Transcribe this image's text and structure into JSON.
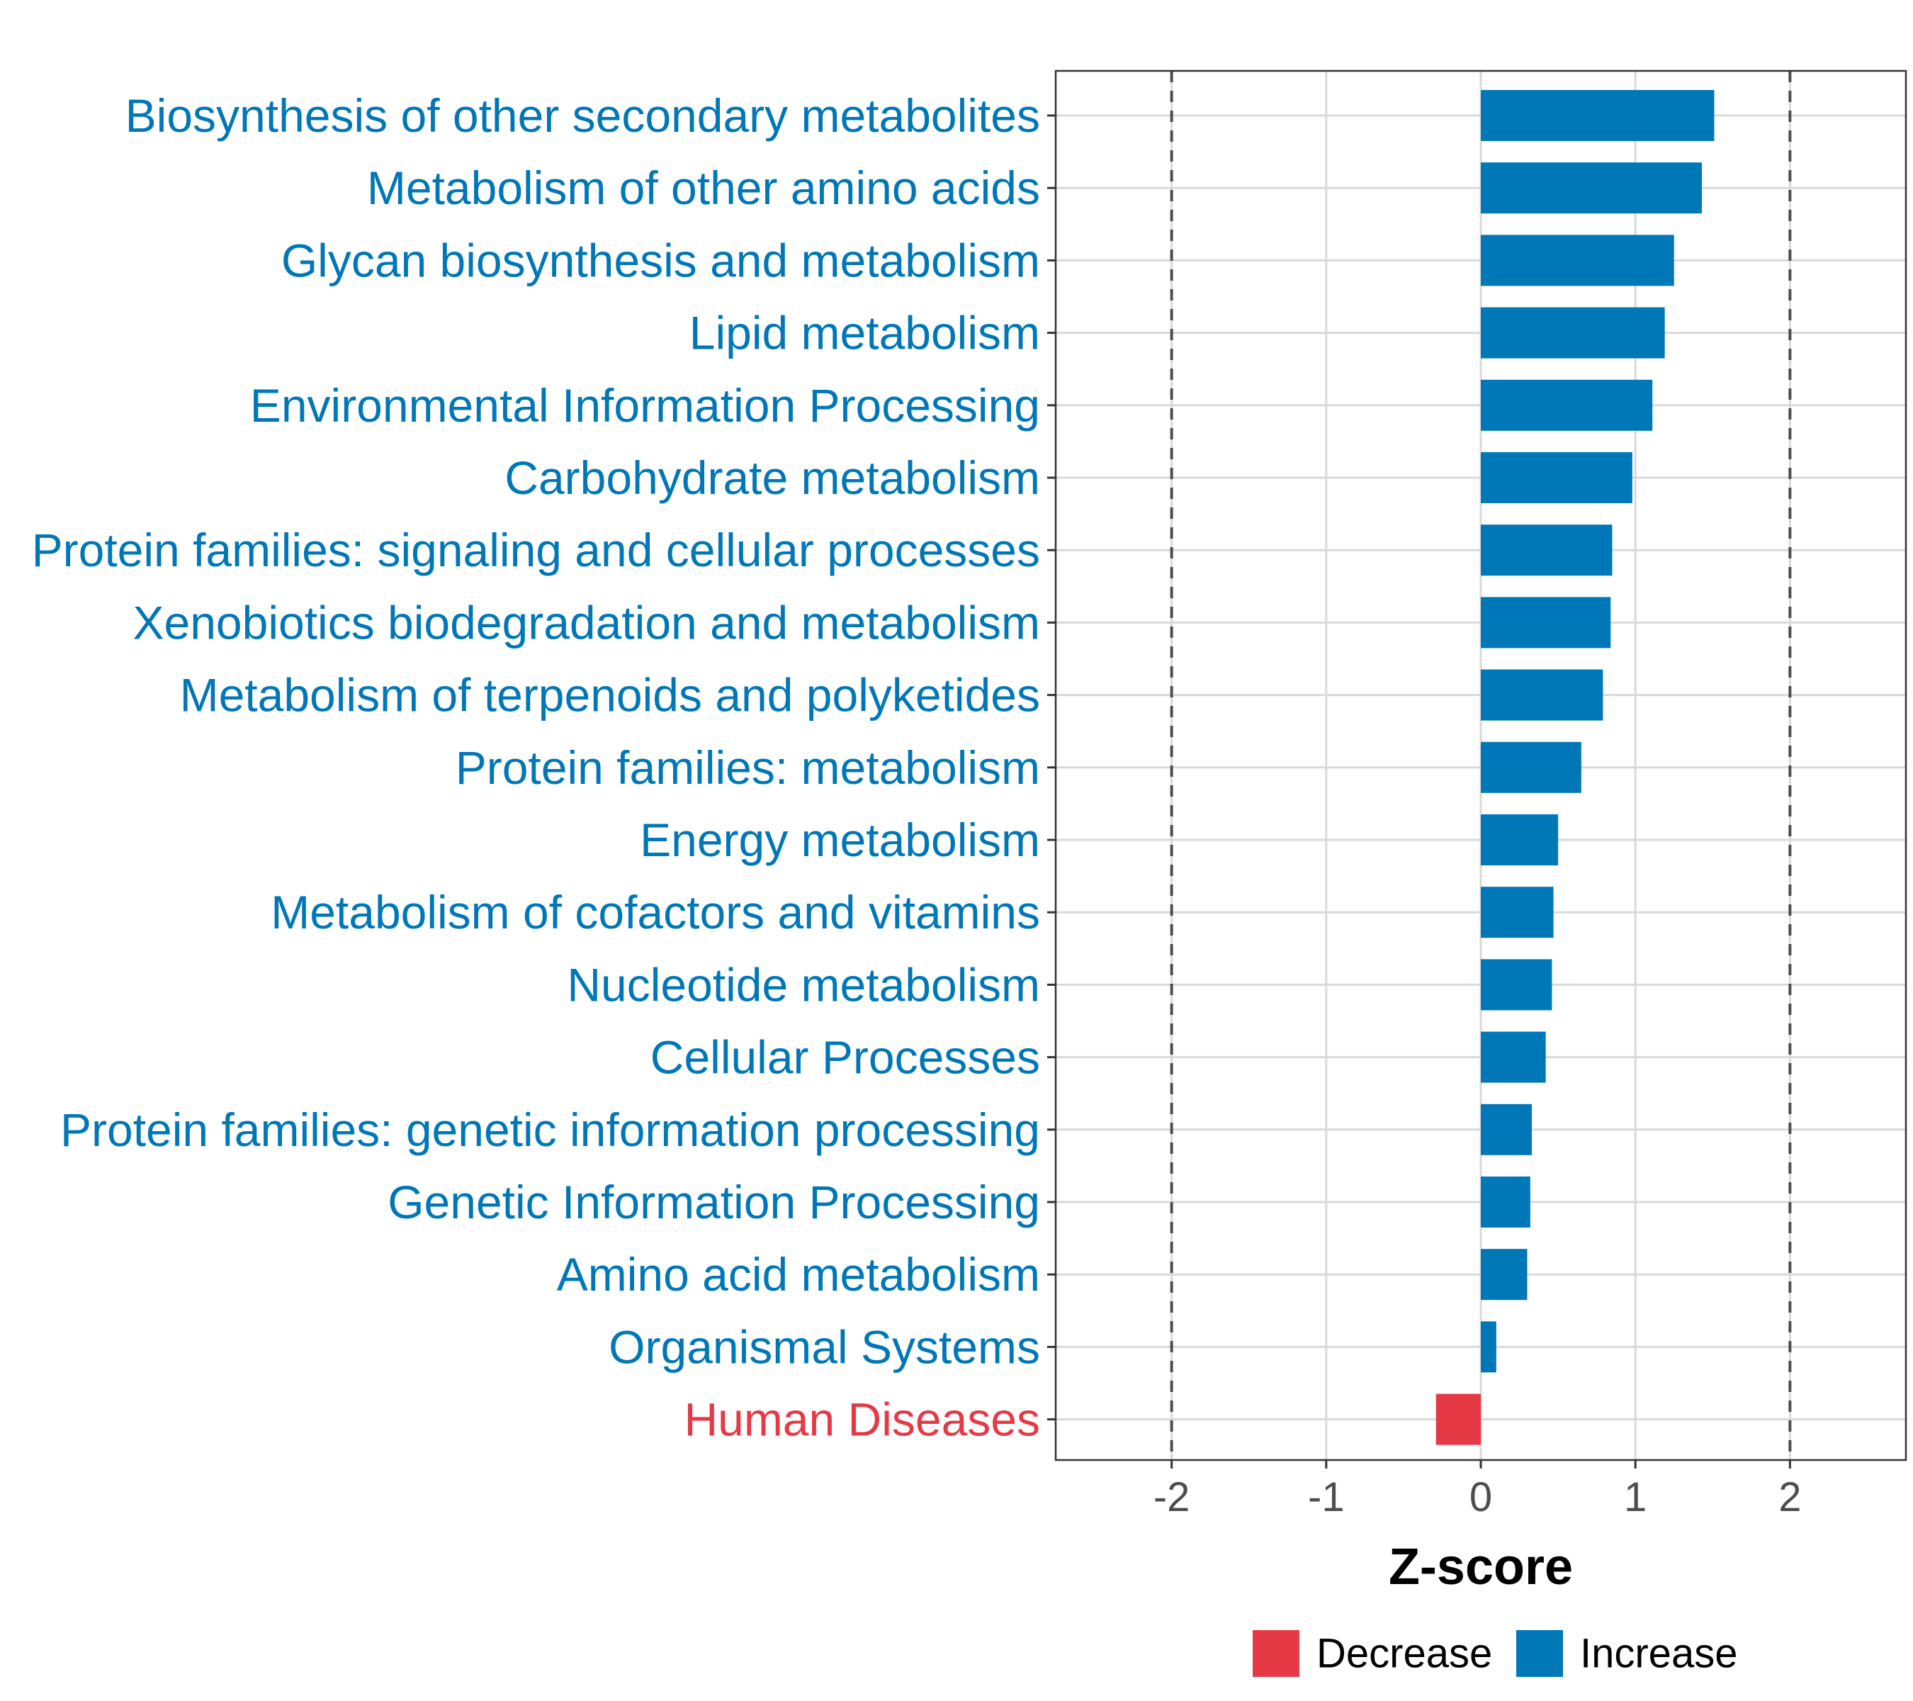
{
  "chart_data": {
    "type": "bar",
    "orientation": "horizontal",
    "title": "",
    "xlabel": "Z-score",
    "ylabel": "",
    "xlim": [
      -2.75,
      2.75
    ],
    "xticks": [
      -2,
      -1,
      0,
      1,
      2
    ],
    "xtick_labels": [
      "-2",
      "-1",
      "0",
      "1",
      "2"
    ],
    "reference_lines": [
      -2,
      2
    ],
    "grid": true,
    "legend_position": "bottom",
    "colors": {
      "Decrease": "#e63946",
      "Increase": "#0077b6"
    },
    "categories": [
      "Biosynthesis of other secondary metabolites",
      "Metabolism of other amino acids",
      "Glycan biosynthesis and metabolism",
      "Lipid metabolism",
      "Environmental Information Processing",
      "Carbohydrate metabolism",
      "Protein families: signaling and cellular processes",
      "Xenobiotics biodegradation and metabolism",
      "Metabolism of terpenoids and polyketides",
      "Protein families: metabolism",
      "Energy metabolism",
      "Metabolism of cofactors and vitamins",
      "Nucleotide metabolism",
      "Cellular Processes",
      "Protein families: genetic information processing",
      "Genetic Information Processing",
      "Amino acid metabolism",
      "Organismal Systems",
      "Human Diseases"
    ],
    "values": [
      1.51,
      1.43,
      1.25,
      1.19,
      1.11,
      0.98,
      0.85,
      0.84,
      0.79,
      0.65,
      0.5,
      0.47,
      0.46,
      0.42,
      0.33,
      0.32,
      0.3,
      0.1,
      -0.29
    ],
    "groups": [
      "Increase",
      "Increase",
      "Increase",
      "Increase",
      "Increase",
      "Increase",
      "Increase",
      "Increase",
      "Increase",
      "Increase",
      "Increase",
      "Increase",
      "Increase",
      "Increase",
      "Increase",
      "Increase",
      "Increase",
      "Increase",
      "Decrease"
    ],
    "legend": [
      {
        "label": "Decrease",
        "color": "#e63946"
      },
      {
        "label": "Increase",
        "color": "#0077b6"
      }
    ]
  }
}
